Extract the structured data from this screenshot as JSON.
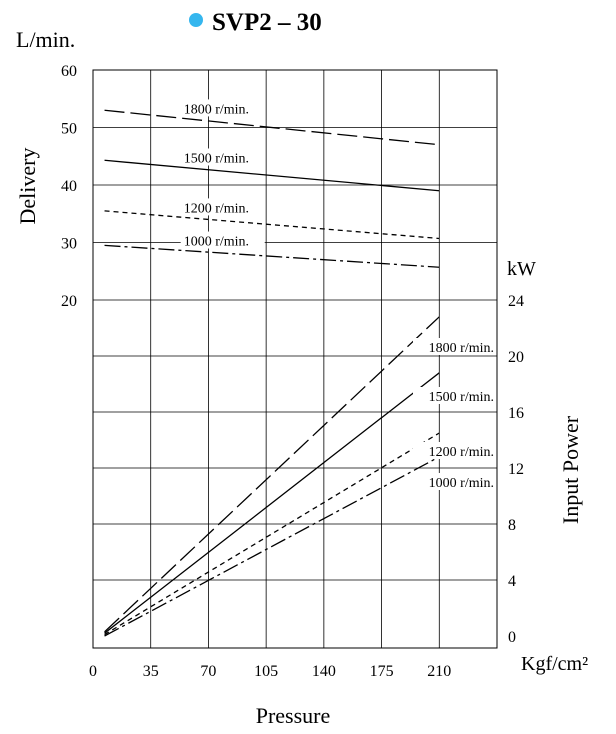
{
  "chart_data": {
    "type": "line",
    "title": "SVP2 – 30",
    "title_bullet_color": "#35b6ee",
    "xlabel": "Pressure",
    "x_unit": "Kgf/cm²",
    "x_ticks": [
      0,
      35,
      70,
      105,
      140,
      175,
      210
    ],
    "xlim": [
      0,
      245
    ],
    "left_axis": {
      "label": "Delivery",
      "unit": "L/min.",
      "ticks": [
        20,
        30,
        40,
        50,
        60
      ],
      "ylim": [
        20,
        60
      ]
    },
    "right_axis": {
      "label": "Input Power",
      "unit": "kW",
      "ticks": [
        0,
        4,
        8,
        12,
        16,
        20,
        24
      ],
      "ylim": [
        0,
        24
      ]
    },
    "grid": true,
    "delivery_series": [
      {
        "name": "1800 r/min.",
        "dash": "long-dash",
        "x": [
          7,
          210
        ],
        "y": [
          53,
          47
        ]
      },
      {
        "name": "1500 r/min.",
        "dash": "solid",
        "x": [
          7,
          210
        ],
        "y": [
          44.3,
          39
        ]
      },
      {
        "name": "1200 r/min.",
        "dash": "short-dash",
        "x": [
          7,
          210
        ],
        "y": [
          35.5,
          30.7
        ]
      },
      {
        "name": "1000 r/min.",
        "dash": "dash-dot",
        "x": [
          7,
          210
        ],
        "y": [
          29.5,
          25.7
        ]
      }
    ],
    "power_series": [
      {
        "name": "1800 r/min.",
        "dash": "long-dash",
        "x": [
          7,
          210
        ],
        "y": [
          0.3,
          22.8
        ]
      },
      {
        "name": "1500 r/min.",
        "dash": "solid",
        "x": [
          7,
          210
        ],
        "y": [
          0.2,
          18.8
        ]
      },
      {
        "name": "1200 r/min.",
        "dash": "short-dash",
        "x": [
          7,
          210
        ],
        "y": [
          0.1,
          14.5
        ]
      },
      {
        "name": "1000 r/min.",
        "dash": "dash-dot",
        "x": [
          7,
          210
        ],
        "y": [
          0.0,
          12.8
        ]
      }
    ]
  }
}
